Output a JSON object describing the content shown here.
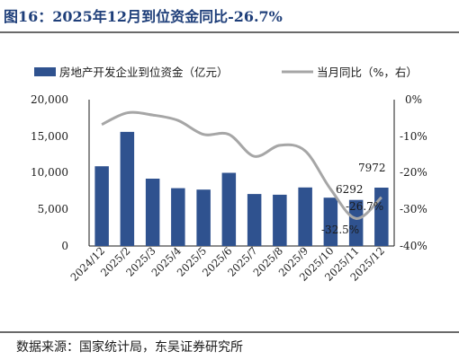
{
  "title": "图16：2025年12月到位资金同比-26.7%",
  "source": "数据来源：国家统计局，东吴证券研究所",
  "chart_data": {
    "type": "bar",
    "categories": [
      "2024/12",
      "2025/2",
      "2025/3",
      "2025/4",
      "2025/5",
      "2025/6",
      "2025/7",
      "2025/8",
      "2025/9",
      "2025/10",
      "2025/11",
      "2025/12"
    ],
    "series": [
      {
        "name": "房地产开发企业到位资金（亿元）",
        "type": "bar",
        "axis": "left",
        "color": "#2f528f",
        "values": [
          10900,
          15600,
          9200,
          7900,
          7700,
          10000,
          7100,
          7000,
          8000,
          6600,
          6292,
          7972
        ]
      },
      {
        "name": "当月同比（%，右）",
        "type": "line",
        "axis": "right",
        "color": "#a6a6a6",
        "values": [
          -6.8,
          -3.6,
          -4.2,
          -5.7,
          -9.5,
          -9.5,
          -15.5,
          -12.5,
          -14.0,
          -24.5,
          -32.5,
          -26.7
        ]
      }
    ],
    "y_left": {
      "min": 0,
      "max": 20000,
      "ticks": [
        "0",
        "5,000",
        "10,000",
        "15,000",
        "20,000"
      ]
    },
    "y_right": {
      "min": -40,
      "max": 0,
      "ticks": [
        "-40%",
        "-30%",
        "-20%",
        "-10%",
        "0%"
      ]
    },
    "data_labels": [
      "6292",
      "7972",
      "-26.7%",
      "-32.5%"
    ],
    "legend_position": "top"
  }
}
